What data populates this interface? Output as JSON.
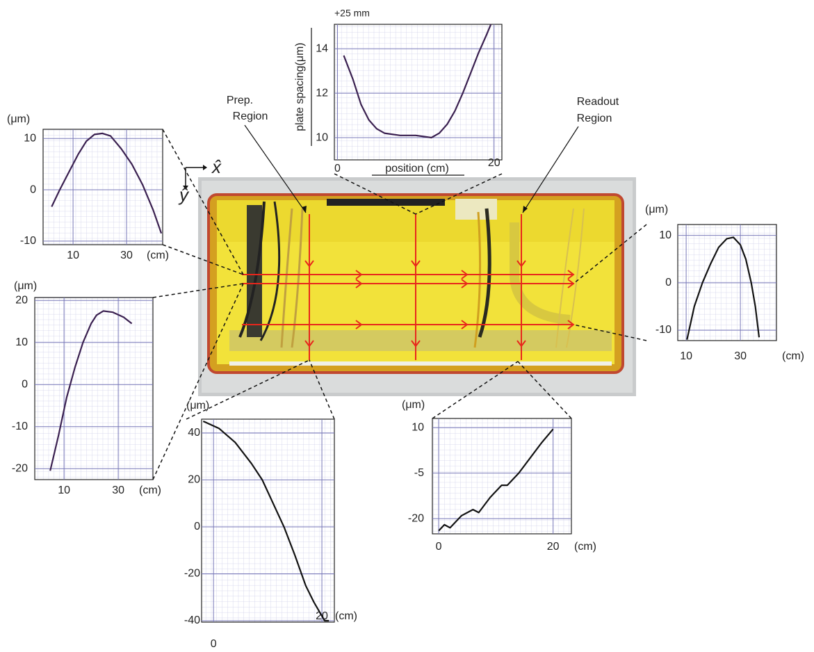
{
  "chart_data": [
    {
      "type": "line",
      "annotation": "+25 mm",
      "ylabel": "plate spacing(μm)",
      "xlabel": "position (cm)",
      "xlim": [
        -0.4,
        21
      ],
      "xticks": [
        0,
        20
      ],
      "ylim": [
        9,
        15.1
      ],
      "yticks": [
        10,
        12,
        14
      ],
      "series": [
        {
          "color": "#3a2050",
          "x": [
            0.8,
            2,
            3,
            4,
            5,
            6,
            8,
            10,
            12,
            13,
            14,
            15,
            16,
            17,
            18,
            19,
            19.6
          ],
          "values": [
            13.7,
            12.6,
            11.5,
            10.8,
            10.4,
            10.2,
            10.1,
            10.1,
            10.0,
            10.2,
            10.6,
            11.2,
            12,
            12.9,
            13.8,
            14.6,
            15.1
          ]
        }
      ]
    },
    {
      "type": "line",
      "ylabel": "(μm)",
      "xlabel": "(cm)",
      "xlim": [
        -1.2,
        43.5
      ],
      "xticks": [
        10,
        30
      ],
      "ylim": [
        -10.7,
        11.8
      ],
      "yticks": [
        10,
        0,
        -10
      ],
      "series": [
        {
          "color": "#3a2050",
          "x": [
            2,
            5,
            8,
            12,
            15,
            18,
            21,
            24,
            28,
            32,
            36,
            40,
            43
          ],
          "values": [
            -3.3,
            0,
            3,
            7,
            9.5,
            10.8,
            11,
            10.5,
            8,
            5,
            1,
            -4,
            -8.5
          ]
        }
      ]
    },
    {
      "type": "line",
      "ylabel": "(μm)",
      "xlabel": "(cm)",
      "xlim": [
        -0.8,
        42.8
      ],
      "xticks": [
        10,
        30
      ],
      "ylim": [
        -22.6,
        20.7
      ],
      "yticks": [
        20,
        10,
        0,
        -10,
        -20
      ],
      "series": [
        {
          "color": "#3a2050",
          "x": [
            4.9,
            8,
            11,
            14,
            17,
            20,
            22,
            24.5,
            28,
            32,
            35
          ],
          "values": [
            -20.5,
            -12,
            -3,
            4,
            10,
            14.5,
            16.5,
            17.5,
            17.2,
            16,
            14.5
          ]
        }
      ]
    },
    {
      "type": "line",
      "ylabel": "(μm)",
      "xlabel": "(cm)",
      "xlim": [
        -2.2,
        22.3
      ],
      "xticks": [
        0,
        20
      ],
      "ylim": [
        -40.6,
        45.9
      ],
      "yticks": [
        40,
        20,
        0,
        -20,
        -40
      ],
      "series": [
        {
          "color": "#111111",
          "x": [
            -1.9,
            1,
            4,
            7,
            9,
            11,
            13,
            15,
            17,
            18.5,
            19.5,
            20.5,
            21.3
          ],
          "values": [
            45,
            42,
            36,
            27,
            20,
            10,
            0,
            -12,
            -25,
            -32,
            -36,
            -40,
            -40
          ]
        }
      ]
    },
    {
      "type": "line",
      "ylabel": "(μm)",
      "xlabel": "(cm)",
      "xlim": [
        -1.1,
        23.2
      ],
      "xticks": [
        0,
        20
      ],
      "ylim": [
        -25,
        13
      ],
      "yticks": [
        10,
        -5,
        -20
      ],
      "series": [
        {
          "color": "#111111",
          "x": [
            0,
            1,
            2,
            4,
            6,
            7,
            9,
            11,
            12,
            14,
            16,
            18,
            20
          ],
          "values": [
            -24,
            -22,
            -23,
            -19,
            -17,
            -18,
            -13,
            -9,
            -9,
            -5,
            0,
            5,
            9.5
          ]
        }
      ]
    },
    {
      "type": "line",
      "ylabel": "(μm)",
      "xlabel": "(cm)",
      "xlim": [
        6.9,
        43.3
      ],
      "xticks": [
        10,
        30
      ],
      "ylim": [
        -12.2,
        12.3
      ],
      "yticks": [
        10,
        0,
        -10
      ],
      "series": [
        {
          "color": "#111111",
          "x": [
            10.3,
            13,
            16,
            19,
            22,
            25,
            27.4,
            30,
            32,
            34,
            35.5,
            36.9
          ],
          "values": [
            -12,
            -5,
            0,
            4,
            7.5,
            9.3,
            9.6,
            8,
            5,
            0,
            -5,
            -11.5
          ]
        }
      ]
    }
  ],
  "photo_labels": {
    "prep_region": [
      "Prep.",
      "Region"
    ],
    "readout_region": [
      "Readout",
      "Region"
    ],
    "x_axis": "x̂",
    "y_axis": "ŷ"
  }
}
